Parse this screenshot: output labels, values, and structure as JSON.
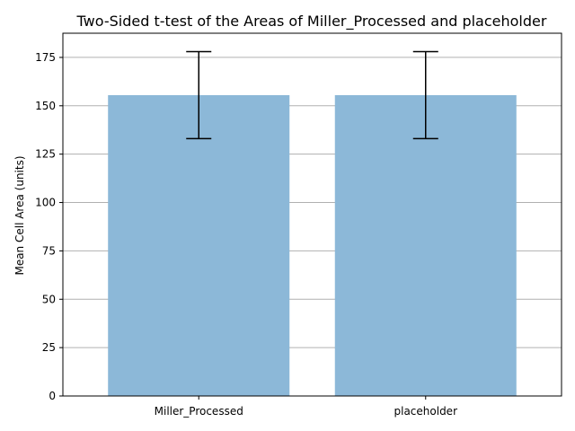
{
  "chart_data": {
    "type": "bar",
    "title": "Two-Sided t-test of the Areas of Miller_Processed and placeholder",
    "xlabel": "",
    "ylabel": "Mean Cell Area (units)",
    "categories": [
      "Miller_Processed",
      "placeholder"
    ],
    "values": [
      155.5,
      155.5
    ],
    "error_low": [
      133,
      133
    ],
    "error_high": [
      178,
      178
    ],
    "ylim": [
      0,
      187.5
    ],
    "yticks": [
      0,
      25,
      50,
      75,
      100,
      125,
      150,
      175
    ],
    "ytick_labels": [
      "0",
      "25",
      "50",
      "75",
      "100",
      "125",
      "150",
      "175"
    ],
    "grid": "horizontal",
    "bar_color": "#8cb8d8",
    "grid_color": "#b0b0b0",
    "errorbar_color": "#000000"
  }
}
